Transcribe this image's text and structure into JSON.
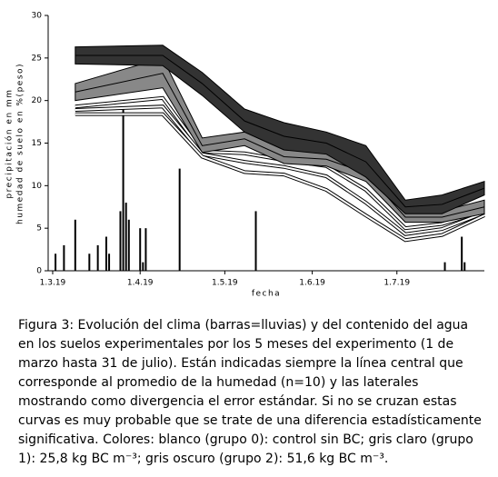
{
  "chart_data": {
    "type": "band",
    "y_label": [
      "precipitación en mm",
      "humedad de suelo en %(peso)"
    ],
    "x_label": "fecha",
    "xlim": [
      -1.6,
      153
    ],
    "xticks": [
      {
        "value": 0,
        "label": "1.3.19"
      },
      {
        "value": 31,
        "label": "1.4.19"
      },
      {
        "value": 61,
        "label": "1.5.19"
      },
      {
        "value": 92,
        "label": "1.6.19"
      },
      {
        "value": 122,
        "label": "1.7.19"
      }
    ],
    "ylim": [
      0,
      30
    ],
    "yticks": [
      0,
      5,
      10,
      15,
      20,
      25,
      30
    ],
    "precipitation": {
      "color": "#000000",
      "x": [
        1,
        4,
        8,
        13,
        16,
        19,
        20,
        24,
        25,
        26,
        27,
        31,
        32,
        33,
        45,
        72,
        139,
        145,
        146
      ],
      "values": [
        2,
        3,
        6,
        2,
        3,
        4,
        2,
        7,
        19,
        8,
        6,
        5,
        1,
        5,
        12,
        7,
        1,
        4,
        1
      ]
    },
    "groups": [
      {
        "color": "#ffffff",
        "x": [
          8,
          39,
          53,
          68,
          82,
          97,
          111,
          125,
          138,
          153
        ],
        "upper": [
          19.3,
          20.3,
          14.0,
          13.8,
          13.0,
          12.3,
          9.5,
          5.0,
          5.5,
          7.0
        ],
        "center": [
          18.9,
          19.3,
          13.7,
          12.8,
          12.2,
          11.1,
          8.0,
          4.3,
          4.9,
          6.8
        ],
        "lower": [
          18.4,
          18.4,
          13.4,
          11.6,
          11.3,
          9.5,
          6.5,
          3.6,
          4.2,
          6.5
        ]
      },
      {
        "color": "#888888",
        "x": [
          8,
          39,
          53,
          68,
          82,
          97,
          111,
          125,
          138,
          153
        ],
        "upper": [
          22.0,
          25.0,
          15.6,
          16.3,
          14.2,
          13.9,
          12.6,
          6.9,
          7.0,
          8.3
        ],
        "center": [
          21.0,
          23.2,
          14.7,
          15.5,
          13.4,
          13.1,
          11.5,
          6.3,
          6.3,
          7.5
        ],
        "lower": [
          20.0,
          21.5,
          13.9,
          14.7,
          12.6,
          12.3,
          10.5,
          5.7,
          5.7,
          6.7
        ]
      },
      {
        "color": "#333333",
        "x": [
          8,
          39,
          53,
          68,
          82,
          97,
          111,
          125,
          138,
          153
        ],
        "upper": [
          26.3,
          26.5,
          23.3,
          19.0,
          17.4,
          16.3,
          14.7,
          8.3,
          8.9,
          10.5
        ],
        "center": [
          25.3,
          25.3,
          22.0,
          17.6,
          15.8,
          15.0,
          12.8,
          7.5,
          7.8,
          9.7
        ],
        "lower": [
          24.3,
          24.1,
          20.6,
          16.3,
          14.2,
          13.7,
          11.0,
          6.7,
          6.7,
          8.9
        ]
      }
    ]
  },
  "caption": "Figura 3: Evolución del clima (barras=lluvias) y del contenido del agua en los suelos experimentales por los 5 meses del experimento (1 de marzo hasta 31 de julio). Están indicadas siempre la línea central que corresponde al promedio de la humedad (n=10) y las laterales mostrando como divergencia el error estándar. Si no se cruzan estas curvas es muy probable que se trate de una diferencia estadísticamente significativa. Colores: blanco (grupo 0): control sin BC; gris claro (grupo 1): 25,8 kg BC m⁻³; gris oscuro (grupo 2): 51,6 kg BC m⁻³."
}
